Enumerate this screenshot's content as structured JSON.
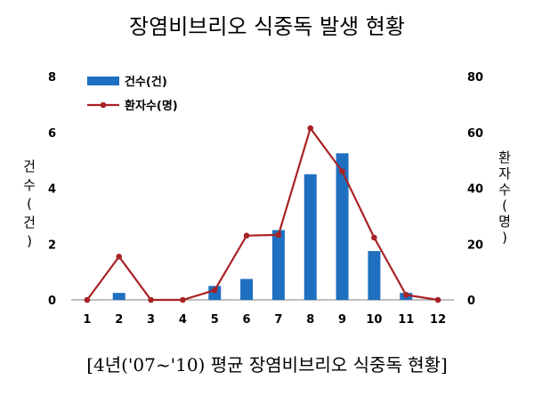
{
  "title": "장염비브리오 식중독 발생 현황",
  "caption": "[4년('07~'10) 평균 장염비브리오 식중독 현황]",
  "chart_data": {
    "type": "bar",
    "title": "장염비브리오 식중독 발생 현황",
    "x_ticks": [
      "1",
      "2",
      "3",
      "4",
      "5",
      "6",
      "7",
      "8",
      "9",
      "10",
      "11",
      "12"
    ],
    "y_left_label_chars": [
      "건",
      "수",
      "(",
      "건",
      ")"
    ],
    "y_right_label_chars": [
      "환",
      "자",
      "수",
      "(",
      "명",
      ")"
    ],
    "y_left_ticks": [
      "0",
      "2",
      "4",
      "6",
      "8"
    ],
    "y_right_ticks": [
      "0",
      "20",
      "40",
      "60",
      "80"
    ],
    "y_left_lim": [
      0,
      8
    ],
    "y_right_lim": [
      0,
      80
    ],
    "legend_position": "top-left",
    "series": [
      {
        "name": "건수(건)",
        "type": "bar",
        "axis": "left",
        "color": "#1f6fc0",
        "values": [
          0,
          0.25,
          0,
          0,
          0.5,
          0.75,
          2.5,
          4.5,
          5.25,
          1.75,
          0.25,
          0
        ]
      },
      {
        "name": "환자수(명)",
        "type": "line",
        "axis": "right",
        "color": "#a82224",
        "values": [
          0,
          15.5,
          0,
          0,
          3.5,
          23,
          23.3,
          61.5,
          46,
          22.3,
          1.8,
          0
        ]
      }
    ]
  }
}
